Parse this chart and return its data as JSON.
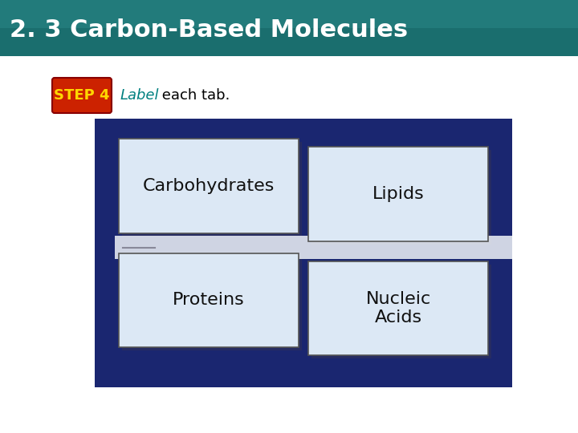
{
  "title": "2. 3 Carbon-Based Molecules",
  "title_color": "#FFFFFF",
  "title_fontsize": 22,
  "title_bg_color": "#1a7a7a",
  "step_label": "STEP 4",
  "step_bg_color": "#cc2200",
  "step_text_color": "#FFD700",
  "instruction_text": "Label each tab.",
  "instruction_label_color": "#008080",
  "instruction_plain_color": "#000000",
  "bg_color": "#FFFFFF",
  "header_bg": "#2e7d7a",
  "card_bg_color": "#dce8f0",
  "card_border_color": "#000000",
  "dark_blue_bg": "#1a2670",
  "tabs": [
    {
      "label": "Carbohydrates",
      "col": 0,
      "row": 0
    },
    {
      "label": "Lipids",
      "col": 1,
      "row": 0
    },
    {
      "label": "Proteins",
      "col": 0,
      "row": 1
    },
    {
      "label": "Nucleic\nAcids",
      "col": 1,
      "row": 1
    }
  ],
  "tab_fontsize": 16
}
